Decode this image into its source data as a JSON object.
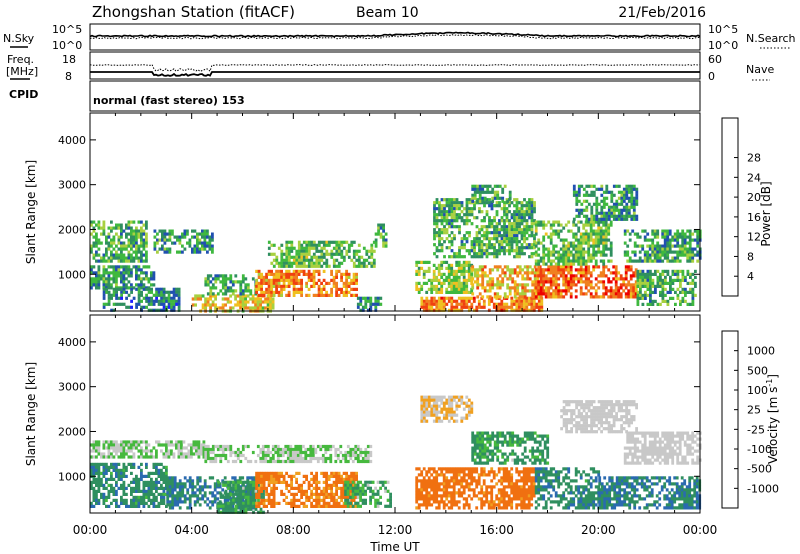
{
  "header": {
    "station": "Zhongshan Station (fitACF)",
    "beam": "Beam 10",
    "date": "21/Feb/2016"
  },
  "params": {
    "nsky_label": "N.Sky",
    "nsearch_label": "N.Search",
    "freq_label_1": "Freq.",
    "freq_label_2": "[MHz]",
    "nave_label": "Nave",
    "cpid_label": "CPID",
    "cpid_value": "normal (fast stereo) 153",
    "left_scale_top": "10^5",
    "left_scale_bottom": "10^0",
    "right_scale_top": "10^5",
    "right_scale_bottom": "10^0",
    "freq_ticks": [
      "18",
      "8"
    ],
    "nave_ticks": [
      "60",
      "0"
    ]
  },
  "colors": {
    "power": [
      "#1f1fff",
      "#2050b0",
      "#2f8f5f",
      "#3fb83f",
      "#a8d040",
      "#f0c020",
      "#f08020",
      "#f04010",
      "#ee0000"
    ],
    "velocity": [
      "#1e3ab8",
      "#2a6ab0",
      "#2f8f5f",
      "#46b93e",
      "#c8c8c8",
      "#c8c8c8",
      "#f0a020",
      "#f07010",
      "#ee0000"
    ]
  },
  "chart_data": [
    {
      "type": "heatmap",
      "name": "power",
      "ylabel": "Slant Range [km]",
      "xlabel": "Time UT",
      "xticks": [
        "00:00",
        "04:00",
        "08:00",
        "12:00",
        "16:00",
        "20:00",
        "00:00"
      ],
      "yticks": [
        "1000",
        "2000",
        "3000",
        "4000"
      ],
      "ylim": [
        180,
        4600
      ],
      "xlim_hours": [
        0,
        24
      ],
      "colorbar_label": "Power [dB]",
      "colorbar_ticks": [
        "4",
        "8",
        "12",
        "16",
        "20",
        "24",
        "28"
      ],
      "colorbar_range": [
        0,
        30
      ],
      "regions": [
        {
          "t": [
            0.0,
            2.2
          ],
          "r": [
            1300,
            2200
          ],
          "v": 11
        },
        {
          "t": [
            0.0,
            2.5
          ],
          "r": [
            700,
            1200
          ],
          "v": 9
        },
        {
          "t": [
            0.5,
            3.5
          ],
          "r": [
            180,
            700
          ],
          "v": 8
        },
        {
          "t": [
            2.5,
            4.8
          ],
          "r": [
            1500,
            2000
          ],
          "v": 9
        },
        {
          "t": [
            4.0,
            7.2
          ],
          "r": [
            180,
            550
          ],
          "v": 18
        },
        {
          "t": [
            4.5,
            6.5
          ],
          "r": [
            550,
            1000
          ],
          "v": 10
        },
        {
          "t": [
            6.5,
            10.5
          ],
          "r": [
            500,
            1100
          ],
          "v": 21
        },
        {
          "t": [
            7.0,
            11.2
          ],
          "r": [
            1200,
            1750
          ],
          "v": 12
        },
        {
          "t": [
            10.5,
            11.5
          ],
          "r": [
            180,
            500
          ],
          "v": 8
        },
        {
          "t": [
            11.2,
            11.6
          ],
          "r": [
            1600,
            2200
          ],
          "v": 10
        },
        {
          "t": [
            12.8,
            15.0
          ],
          "r": [
            600,
            1300
          ],
          "v": 14
        },
        {
          "t": [
            13.0,
            17.8
          ],
          "r": [
            180,
            500
          ],
          "v": 22
        },
        {
          "t": [
            13.5,
            17.5
          ],
          "r": [
            1400,
            2700
          ],
          "v": 11
        },
        {
          "t": [
            15.0,
            17.8
          ],
          "r": [
            500,
            1200
          ],
          "v": 19
        },
        {
          "t": [
            15.0,
            16.5
          ],
          "r": [
            2600,
            3000
          ],
          "v": 10
        },
        {
          "t": [
            17.5,
            21.5
          ],
          "r": [
            500,
            1200
          ],
          "v": 24
        },
        {
          "t": [
            17.5,
            20.5
          ],
          "r": [
            1200,
            2200
          ],
          "v": 12
        },
        {
          "t": [
            19.0,
            21.5
          ],
          "r": [
            2200,
            3000
          ],
          "v": 9
        },
        {
          "t": [
            21.5,
            23.8
          ],
          "r": [
            300,
            1100
          ],
          "v": 11
        },
        {
          "t": [
            21.0,
            24.0
          ],
          "r": [
            1300,
            2000
          ],
          "v": 10
        }
      ]
    },
    {
      "type": "heatmap",
      "name": "velocity",
      "ylabel": "Slant Range [km]",
      "xlabel": "Time UT",
      "xticks": [
        "00:00",
        "04:00",
        "08:00",
        "12:00",
        "16:00",
        "20:00",
        "00:00"
      ],
      "yticks": [
        "1000",
        "2000",
        "3000",
        "4000"
      ],
      "ylim": [
        180,
        4600
      ],
      "xlim_hours": [
        0,
        24
      ],
      "colorbar_label": "Velocity [m s^-1]",
      "colorbar_ticks": [
        "1000",
        "500",
        "100",
        "25",
        "-25",
        "-100",
        "-500",
        "-1000"
      ],
      "regions": [
        {
          "t": [
            0.0,
            4.5
          ],
          "r": [
            1400,
            1800
          ],
          "v": 25
        },
        {
          "t": [
            4.5,
            11.0
          ],
          "r": [
            1300,
            1700
          ],
          "v": 25
        },
        {
          "t": [
            0.0,
            3.0
          ],
          "r": [
            300,
            1300
          ],
          "v": 150
        },
        {
          "t": [
            3.0,
            6.5
          ],
          "r": [
            300,
            1000
          ],
          "v": 200
        },
        {
          "t": [
            5.0,
            6.8
          ],
          "r": [
            200,
            900
          ],
          "v": 80
        },
        {
          "t": [
            6.5,
            10.5
          ],
          "r": [
            300,
            1100
          ],
          "v": -150
        },
        {
          "t": [
            10.0,
            11.8
          ],
          "r": [
            300,
            900
          ],
          "v": 60
        },
        {
          "t": [
            13.0,
            15.0
          ],
          "r": [
            2200,
            2800
          ],
          "v": -25
        },
        {
          "t": [
            12.8,
            17.5
          ],
          "r": [
            300,
            1200
          ],
          "v": -200
        },
        {
          "t": [
            15.0,
            18.0
          ],
          "r": [
            1300,
            2000
          ],
          "v": 80
        },
        {
          "t": [
            17.5,
            20.0
          ],
          "r": [
            300,
            1200
          ],
          "v": 150
        },
        {
          "t": [
            18.5,
            21.5
          ],
          "r": [
            2000,
            2700
          ],
          "v": 0
        },
        {
          "t": [
            20.0,
            24.0
          ],
          "r": [
            300,
            1000
          ],
          "v": 200
        },
        {
          "t": [
            21.0,
            24.0
          ],
          "r": [
            1300,
            2000
          ],
          "v": 0
        }
      ]
    }
  ]
}
